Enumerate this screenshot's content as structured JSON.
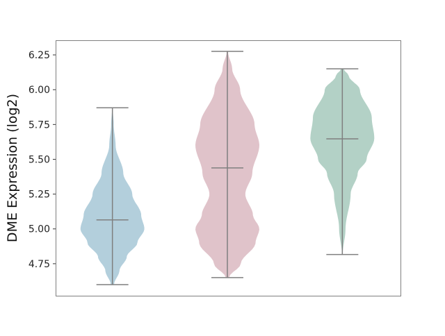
{
  "chart_data": {
    "type": "violin",
    "title": "",
    "xlabel": "",
    "ylabel": "DME Expression (log2)",
    "ylim": [
      4.52,
      6.355
    ],
    "yticks": [
      "4.75",
      "5.00",
      "5.25",
      "5.50",
      "5.75",
      "6.00",
      "6.25"
    ],
    "grid": false,
    "series": [
      {
        "color": "#b3cfdc",
        "min": 4.6,
        "max": 5.87,
        "median": 5.065,
        "density_profile": [
          [
            4.6,
            0.05
          ],
          [
            4.7,
            0.22
          ],
          [
            4.8,
            0.45
          ],
          [
            4.9,
            0.78
          ],
          [
            5.0,
            1.0
          ],
          [
            5.1,
            0.9
          ],
          [
            5.25,
            0.62
          ],
          [
            5.4,
            0.34
          ],
          [
            5.6,
            0.1
          ],
          [
            5.75,
            0.04
          ],
          [
            5.87,
            0.01
          ]
        ]
      },
      {
        "color": "#e0c3ca",
        "min": 4.65,
        "max": 6.275,
        "median": 5.438,
        "density_profile": [
          [
            4.65,
            0.05
          ],
          [
            4.75,
            0.42
          ],
          [
            4.9,
            0.88
          ],
          [
            5.0,
            1.0
          ],
          [
            5.1,
            0.8
          ],
          [
            5.25,
            0.56
          ],
          [
            5.4,
            0.78
          ],
          [
            5.6,
            1.0
          ],
          [
            5.75,
            0.85
          ],
          [
            6.0,
            0.4
          ],
          [
            6.15,
            0.15
          ],
          [
            6.275,
            0.02
          ]
        ]
      },
      {
        "color": "#b3d1c6",
        "min": 4.816,
        "max": 6.15,
        "median": 5.647,
        "density_profile": [
          [
            4.816,
            0.01
          ],
          [
            5.0,
            0.1
          ],
          [
            5.25,
            0.26
          ],
          [
            5.4,
            0.48
          ],
          [
            5.5,
            0.76
          ],
          [
            5.65,
            1.0
          ],
          [
            5.8,
            0.92
          ],
          [
            6.0,
            0.55
          ],
          [
            6.1,
            0.2
          ],
          [
            6.15,
            0.04
          ]
        ]
      }
    ],
    "line_color": "#7f7f7f"
  }
}
